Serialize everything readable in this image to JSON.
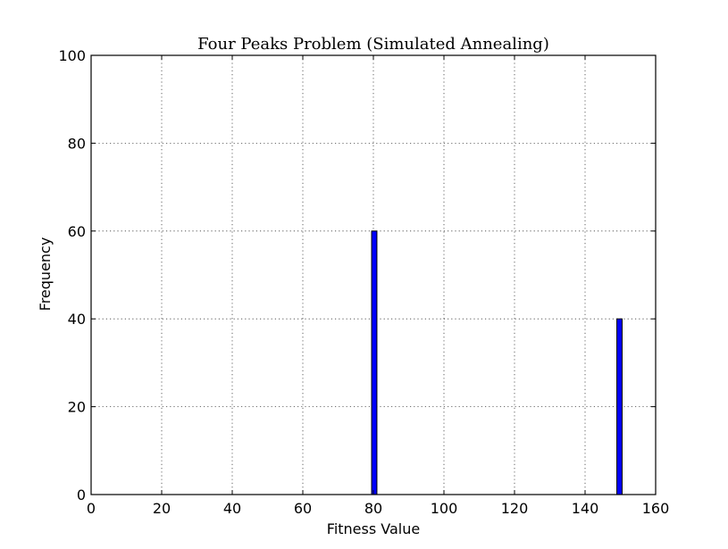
{
  "chart_data": {
    "type": "bar",
    "title": "Four Peaks Problem (Simulated Annealing)",
    "xlabel": "Fitness Value",
    "ylabel": "Frequency",
    "xlim": [
      0,
      160
    ],
    "ylim": [
      0,
      100
    ],
    "xticks": [
      0,
      20,
      40,
      60,
      80,
      100,
      120,
      140,
      160
    ],
    "yticks": [
      0,
      20,
      40,
      60,
      80,
      100
    ],
    "grid": true,
    "bar_color": "#0000ff",
    "bins": [
      {
        "x_start": 79.5,
        "x_end": 81,
        "value": 60
      },
      {
        "x_start": 149,
        "x_end": 150.5,
        "value": 40
      }
    ]
  }
}
